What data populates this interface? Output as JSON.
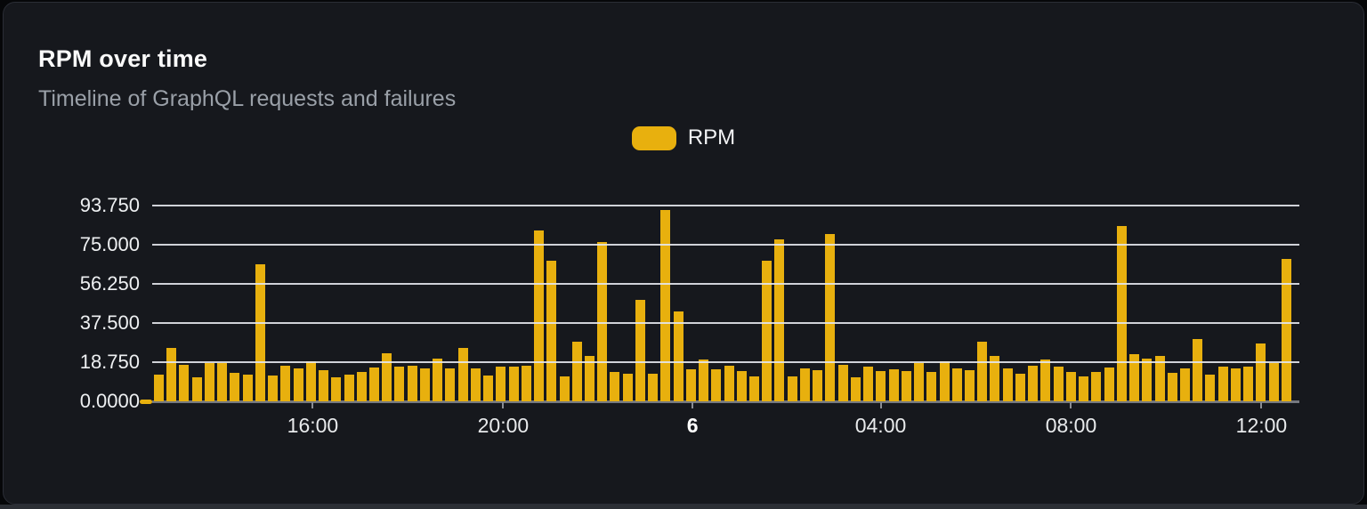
{
  "header": {
    "title": "RPM over time",
    "subtitle": "Timeline of GraphQL requests and failures"
  },
  "legend": {
    "items": [
      {
        "label": "RPM"
      }
    ]
  },
  "colors": {
    "accent": "#e8b00e",
    "card_background": "#16181d",
    "grid_line": "#e4e7ed",
    "axis_line": "#75787f"
  },
  "chart_data": {
    "type": "bar",
    "title": "RPM over time",
    "subtitle": "Timeline of GraphQL requests and failures",
    "grid": true,
    "legend_position": "top-center",
    "bar_color": "#e8b00e",
    "y_axis": {
      "max": 93.75,
      "tick_values": [
        0,
        18.75,
        37.5,
        56.25,
        75,
        93.75
      ],
      "tick_labels": [
        "0.0000",
        "18.750",
        "37.500",
        "56.250",
        "75.000",
        "93.750"
      ]
    },
    "x_axis": {
      "ticks": [
        {
          "label": "16:00",
          "pos": 0.14,
          "bold": false
        },
        {
          "label": "20:00",
          "pos": 0.306,
          "bold": false
        },
        {
          "label": "6",
          "pos": 0.471,
          "bold": true
        },
        {
          "label": "04:00",
          "pos": 0.635,
          "bold": false
        },
        {
          "label": "08:00",
          "pos": 0.801,
          "bold": false
        },
        {
          "label": "12:00",
          "pos": 0.967,
          "bold": false
        }
      ]
    },
    "series": [
      {
        "name": "RPM",
        "values": [
          12.8,
          25.6,
          17.5,
          11.5,
          18.3,
          18.3,
          13.6,
          12.8,
          65.6,
          12.4,
          17.0,
          16.0,
          19.2,
          15.0,
          11.5,
          12.8,
          14.0,
          16.2,
          23.0,
          16.6,
          17.0,
          15.7,
          20.4,
          15.7,
          25.5,
          15.7,
          12.4,
          16.6,
          16.6,
          17.0,
          81.8,
          67.3,
          11.9,
          28.5,
          21.7,
          76.3,
          14.0,
          13.2,
          48.6,
          13.2,
          91.6,
          43.0,
          15.3,
          20.0,
          15.3,
          17.0,
          14.5,
          12.0,
          67.3,
          77.5,
          11.9,
          15.7,
          14.9,
          80.1,
          17.5,
          11.5,
          16.6,
          14.5,
          15.3,
          14.5,
          18.3,
          14.0,
          19.2,
          16.0,
          14.9,
          28.5,
          21.7,
          15.7,
          13.2,
          17.0,
          20.0,
          16.6,
          14.0,
          11.9,
          14.0,
          16.2,
          83.9,
          22.6,
          20.4,
          21.7,
          13.6,
          15.7,
          29.8,
          12.8,
          16.6,
          15.7,
          16.6,
          27.7,
          18.3,
          68.2
        ]
      }
    ]
  }
}
